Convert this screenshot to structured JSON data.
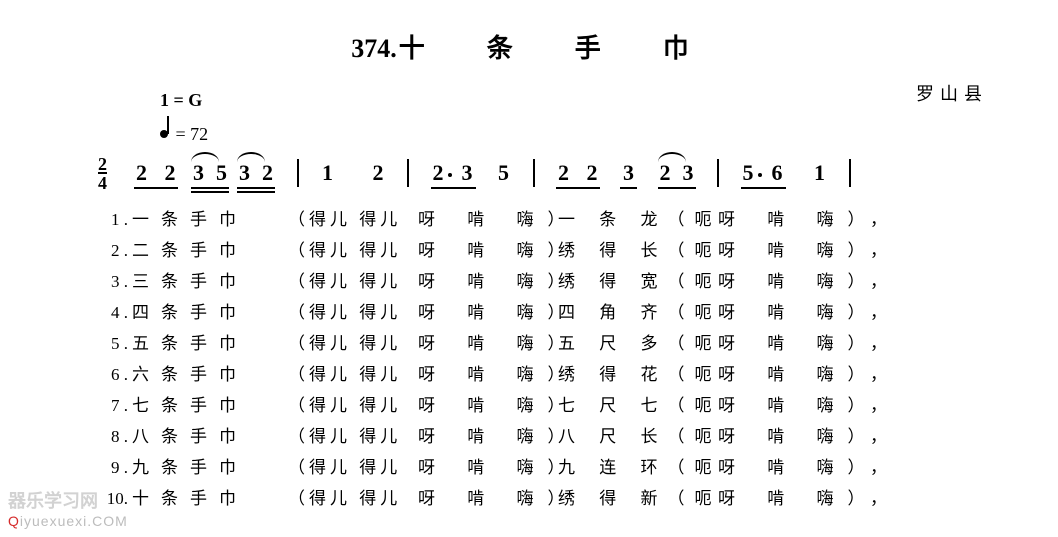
{
  "title": {
    "num": "374.",
    "text": "十　条　手　巾"
  },
  "region": "罗山县",
  "key": "1 = G",
  "tempo_value": "= 72",
  "timesig": {
    "num": "2",
    "den": "4"
  },
  "notation": {
    "m1": {
      "n1": "2",
      "n2": "2",
      "n3": "3",
      "n4": "5",
      "n5": "3",
      "n6": "2"
    },
    "m2": {
      "n1": "1",
      "n2": "2"
    },
    "m3": {
      "n1": "2",
      "n2": "3",
      "n3": "5"
    },
    "m4": {
      "n1": "2",
      "n2": "2",
      "n3": "3",
      "n4": "2",
      "n5": "3"
    },
    "m5": {
      "n1": "5",
      "n2": "6",
      "n3": "1"
    }
  },
  "colors": {
    "bg": "#ffffff",
    "fg": "#000000",
    "wm_gray": "#d2d2d2",
    "wm_red": "#d52b2b"
  },
  "fontsize": {
    "title": 26,
    "body": 17,
    "notation": 22
  },
  "verses": [
    {
      "n": "1 .",
      "a": "一条手巾",
      "b": "（得儿 得儿",
      "c": "呀 啃 嗨）",
      "d": "一 条 龙（呃",
      "e": "呀 啃 嗨），"
    },
    {
      "n": "2 .",
      "a": "二条手巾",
      "b": "（得儿 得儿",
      "c": "呀 啃 嗨）",
      "d": "绣 得 长（呃",
      "e": "呀 啃 嗨），"
    },
    {
      "n": "3 .",
      "a": "三条手巾",
      "b": "（得儿 得儿",
      "c": "呀 啃 嗨）",
      "d": "绣 得 宽（呃",
      "e": "呀 啃 嗨），"
    },
    {
      "n": "4 .",
      "a": "四条手巾",
      "b": "（得儿 得儿",
      "c": "呀 啃 嗨）",
      "d": "四 角 齐（呃",
      "e": "呀 啃 嗨），"
    },
    {
      "n": "5 .",
      "a": "五条手巾",
      "b": "（得儿 得儿",
      "c": "呀 啃 嗨）",
      "d": "五 尺 多（呃",
      "e": "呀 啃 嗨），"
    },
    {
      "n": "6 .",
      "a": "六条手巾",
      "b": "（得儿 得儿",
      "c": "呀 啃 嗨）",
      "d": "绣 得 花（呃",
      "e": "呀 啃 嗨），"
    },
    {
      "n": "7 .",
      "a": "七条手巾",
      "b": "（得儿 得儿",
      "c": "呀 啃 嗨）",
      "d": "七 尺 七（呃",
      "e": "呀 啃 嗨），"
    },
    {
      "n": "8 .",
      "a": "八条手巾",
      "b": "（得儿 得儿",
      "c": "呀 啃 嗨）",
      "d": "八 尺 长（呃",
      "e": "呀 啃 嗨），"
    },
    {
      "n": "9 .",
      "a": "九条手巾",
      "b": "（得儿 得儿",
      "c": "呀 啃 嗨）",
      "d": "九 连 环（呃",
      "e": "呀 啃 嗨），"
    },
    {
      "n": "10.",
      "a": "十条手巾",
      "b": "（得儿 得儿",
      "c": "呀 啃 嗨）",
      "d": "绣 得 新（呃",
      "e": "呀 啃 嗨），"
    }
  ],
  "watermark": {
    "line1a": "器乐学习网",
    "line1q": "Q",
    "line2": "iyuexuexi.COM"
  }
}
